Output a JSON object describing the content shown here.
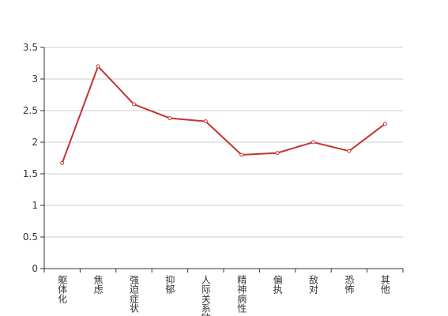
{
  "chart_data": {
    "type": "line",
    "categories": [
      "躯体化",
      "焦虑",
      "强迫症状",
      "抑郁",
      "人际关系敏感",
      "精神病性",
      "偏执",
      "敌对",
      "恐怖",
      "其他"
    ],
    "values": [
      1.67,
      3.2,
      2.6,
      2.38,
      2.33,
      1.8,
      1.83,
      2.0,
      1.86,
      2.29
    ],
    "color": "#c23531",
    "ylim": [
      0,
      3.5
    ],
    "yticks": [
      0,
      0.5,
      1,
      1.5,
      2,
      2.5,
      3,
      3.5
    ],
    "grid": true
  }
}
